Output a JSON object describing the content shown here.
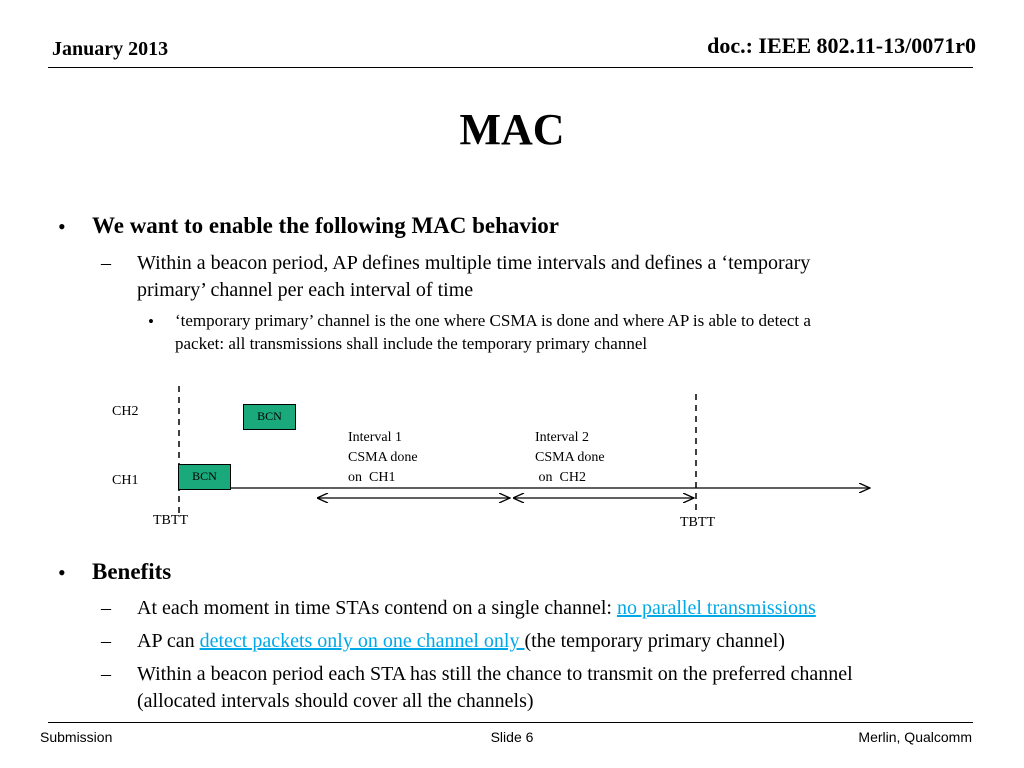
{
  "header": {
    "date": "January 2013",
    "doc_id": "doc.: IEEE 802.11-13/0071r0"
  },
  "title": "MAC",
  "section1": {
    "bullet": "•",
    "heading": "We want to enable the following MAC behavior",
    "sub_dash": "–",
    "sub_line1": "Within a beacon period, AP defines multiple time intervals and defines a ‘temporary",
    "sub_line2": "primary’ channel per each interval of time",
    "subsub_bullet": "•",
    "subsub_line1": "‘temporary primary’ channel is the one where  CSMA is done and where AP is able to detect a",
    "subsub_line2": "packet: all transmissions shall include the temporary primary channel"
  },
  "diagram": {
    "ch2_label": "CH2",
    "ch1_label": "CH1",
    "bcn_ch2": "BCN",
    "bcn_ch1": "BCN",
    "interval1_line1": "Interval 1",
    "interval1_line2": "CSMA done",
    "interval1_line3": "on  CH1",
    "interval2_line1": "Interval 2",
    "interval2_line2": "CSMA done",
    "interval2_line3": " on  CH2",
    "tbtt_left": "TBTT",
    "tbtt_right": "TBTT"
  },
  "section2": {
    "bullet": "•",
    "heading": "Benefits",
    "dash": "–",
    "item1_text": "At each moment in time STAs contend on a single channel: ",
    "item1_link": "no parallel transmissions",
    "item2_text_a": "AP can ",
    "item2_link": "detect packets only on one channel only ",
    "item2_text_b": "(the temporary primary channel)",
    "item3_line1": "Within a beacon period each STA has still the chance to transmit on the preferred channel",
    "item3_line2": "(allocated intervals should cover all the channels)"
  },
  "footer": {
    "left": "Submission",
    "center": "Slide 6",
    "right": "Merlin, Qualcomm"
  },
  "colors": {
    "bcn_fill": "#1aa97a",
    "link": "#00a8e8"
  }
}
